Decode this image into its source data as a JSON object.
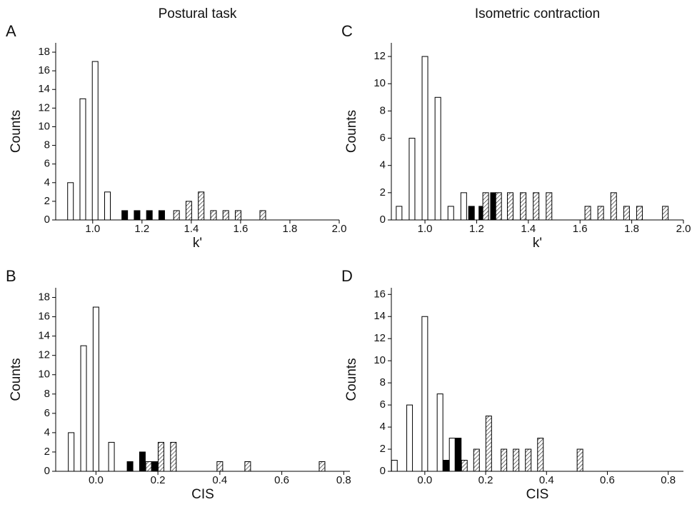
{
  "chart_data": [
    {
      "type": "bar",
      "panel": "A",
      "title": "Postural task",
      "xlabel": "k'",
      "ylabel": "Counts",
      "xlim": [
        0.85,
        2.0
      ],
      "xticks": [
        {
          "value": 1.0,
          "label": "1.0"
        },
        1.2,
        1.4,
        1.6,
        1.8,
        {
          "value": 2.0,
          "label": "2.0"
        }
      ],
      "ylim": [
        0,
        19
      ],
      "yticks": [
        0,
        2,
        4,
        6,
        8,
        10,
        12,
        14,
        16,
        18
      ],
      "series": [
        {
          "style": "open",
          "color": "#000000",
          "x": [
            0.91,
            0.96,
            1.01,
            1.06
          ],
          "values": [
            4,
            13,
            17,
            3
          ]
        },
        {
          "style": "solid",
          "color": "#000000",
          "x": [
            1.13,
            1.18,
            1.23,
            1.28
          ],
          "values": [
            1,
            1,
            1,
            1
          ]
        },
        {
          "style": "hatched",
          "color": "#000000",
          "x": [
            1.34,
            1.39,
            1.44,
            1.49,
            1.54,
            1.59,
            1.69
          ],
          "values": [
            1,
            2,
            3,
            1,
            1,
            1,
            1
          ]
        }
      ]
    },
    {
      "type": "bar",
      "panel": "B",
      "xlabel": "CIS",
      "ylabel": "Counts",
      "xlim": [
        -0.13,
        0.82
      ],
      "xticks": [
        {
          "value": 0,
          "label": "0.0"
        },
        0.2,
        0.4,
        0.6,
        0.8
      ],
      "ylim": [
        0,
        19
      ],
      "yticks": [
        0,
        2,
        4,
        6,
        8,
        10,
        12,
        14,
        16,
        18
      ],
      "series": [
        {
          "style": "open",
          "color": "#000000",
          "x": [
            -0.08,
            -0.04,
            0.0,
            0.05
          ],
          "values": [
            4,
            13,
            17,
            3
          ]
        },
        {
          "style": "solid",
          "color": "#000000",
          "x": [
            0.11,
            0.15,
            0.19
          ],
          "values": [
            1,
            2,
            1
          ]
        },
        {
          "style": "hatched",
          "color": "#000000",
          "x": [
            0.17,
            0.21,
            0.25,
            0.4,
            0.49,
            0.73
          ],
          "values": [
            1,
            3,
            3,
            1,
            1,
            1
          ]
        }
      ]
    },
    {
      "type": "bar",
      "panel": "C",
      "title": "Isometric contraction",
      "xlabel": "k'",
      "ylabel": "Counts",
      "xlim": [
        0.87,
        2.0
      ],
      "xticks": [
        {
          "value": 1.0,
          "label": "1.0"
        },
        1.2,
        1.4,
        1.6,
        1.8,
        {
          "value": 2.0,
          "label": "2.0"
        }
      ],
      "ylim": [
        0,
        13
      ],
      "yticks": [
        0,
        2,
        4,
        6,
        8,
        10,
        12
      ],
      "series": [
        {
          "style": "open",
          "color": "#000000",
          "x": [
            0.9,
            0.95,
            1.0,
            1.05,
            1.1,
            1.15
          ],
          "values": [
            1,
            6,
            12,
            9,
            1,
            2
          ]
        },
        {
          "style": "solid",
          "color": "#000000",
          "x": [
            1.18,
            1.22,
            1.265
          ],
          "values": [
            1,
            1,
            2
          ]
        },
        {
          "style": "hatched",
          "color": "#000000",
          "x": [
            1.235,
            1.285,
            1.33,
            1.38,
            1.43,
            1.48,
            1.63,
            1.68,
            1.73,
            1.78,
            1.83,
            1.93
          ],
          "values": [
            2,
            2,
            2,
            2,
            2,
            2,
            1,
            1,
            2,
            1,
            1,
            1
          ]
        }
      ]
    },
    {
      "type": "bar",
      "panel": "D",
      "xlabel": "CIS",
      "ylabel": "Counts",
      "xlim": [
        -0.11,
        0.85
      ],
      "xticks": [
        {
          "value": 0,
          "label": "0.0"
        },
        0.2,
        0.4,
        0.6,
        0.8
      ],
      "ylim": [
        0,
        16.6
      ],
      "yticks": [
        0,
        2,
        4,
        6,
        8,
        10,
        12,
        14,
        16
      ],
      "series": [
        {
          "style": "open",
          "color": "#000000",
          "x": [
            -0.1,
            -0.05,
            0.0,
            0.05,
            0.09
          ],
          "values": [
            1,
            6,
            14,
            7,
            3
          ]
        },
        {
          "style": "solid",
          "color": "#000000",
          "x": [
            0.07,
            0.11
          ],
          "values": [
            1,
            3
          ]
        },
        {
          "style": "hatched",
          "color": "#000000",
          "x": [
            0.13,
            0.17,
            0.21,
            0.26,
            0.3,
            0.34,
            0.38,
            0.51
          ],
          "values": [
            1,
            2,
            5,
            2,
            2,
            2,
            3,
            2
          ]
        }
      ]
    }
  ]
}
